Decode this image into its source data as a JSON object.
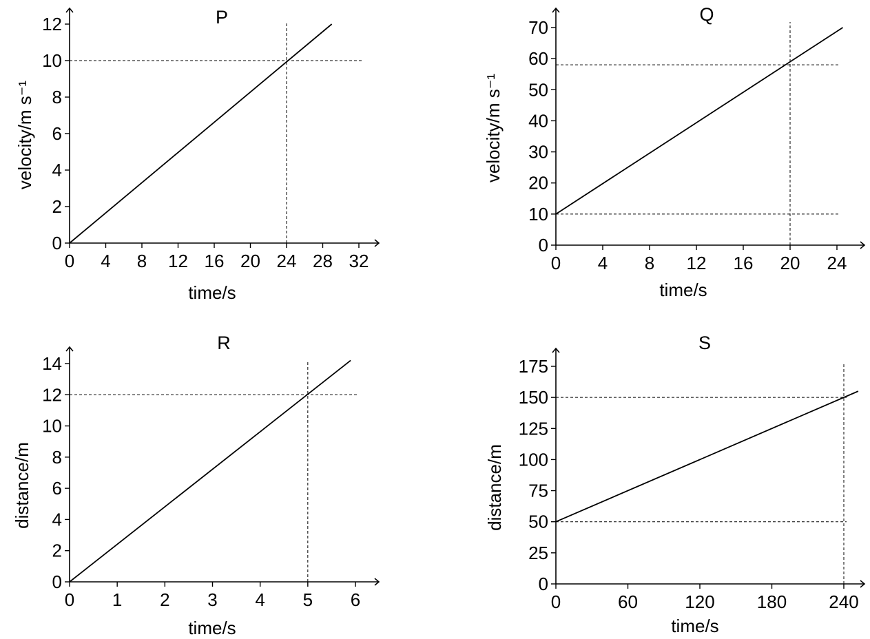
{
  "chart_data": [
    {
      "type": "line",
      "title": "P",
      "xlabel": "time / s",
      "ylabel": "velocity / m s⁻¹",
      "xlim": [
        0,
        32
      ],
      "ylim": [
        0,
        12
      ],
      "xticks": [
        0,
        4,
        8,
        12,
        16,
        20,
        24,
        28,
        32
      ],
      "yticks": [
        0,
        2,
        4,
        6,
        8,
        10,
        12
      ],
      "grid": false,
      "series": [
        {
          "x": [
            0,
            29
          ],
          "y": [
            0,
            12
          ]
        }
      ],
      "guides": {
        "h": [
          10
        ],
        "v": [
          24
        ]
      }
    },
    {
      "type": "line",
      "title": "Q",
      "xlabel": "time / s",
      "ylabel": "velocity / m s⁻¹",
      "xlim": [
        0,
        24
      ],
      "ylim": [
        0,
        70
      ],
      "xticks": [
        0,
        4,
        8,
        12,
        16,
        20,
        24
      ],
      "yticks": [
        0,
        10,
        20,
        30,
        40,
        50,
        60,
        70
      ],
      "grid": false,
      "series": [
        {
          "x": [
            0,
            24.5
          ],
          "y": [
            10,
            70
          ]
        }
      ],
      "guides": {
        "h": [
          10,
          58
        ],
        "v": [
          20
        ]
      }
    },
    {
      "type": "line",
      "title": "R",
      "xlabel": "time / s",
      "ylabel": "distance / m",
      "xlim": [
        0,
        6
      ],
      "ylim": [
        0,
        14
      ],
      "xticks": [
        0,
        1,
        2,
        3,
        4,
        5,
        6
      ],
      "yticks": [
        0,
        2,
        4,
        6,
        8,
        10,
        12,
        14
      ],
      "grid": false,
      "series": [
        {
          "x": [
            0,
            5.9
          ],
          "y": [
            0,
            14.2
          ]
        }
      ],
      "guides": {
        "h": [
          12
        ],
        "v": [
          5
        ]
      }
    },
    {
      "type": "line",
      "title": "S",
      "xlabel": "time / s",
      "ylabel": "distance / m",
      "xlim": [
        0,
        240
      ],
      "ylim": [
        0,
        175
      ],
      "xticks": [
        0,
        60,
        120,
        180,
        240
      ],
      "yticks": [
        0,
        25,
        50,
        75,
        100,
        125,
        150,
        175
      ],
      "grid": false,
      "series": [
        {
          "x": [
            0,
            252
          ],
          "y": [
            50,
            155
          ]
        }
      ],
      "guides": {
        "h": [
          50,
          150
        ],
        "v": [
          240
        ]
      }
    }
  ]
}
